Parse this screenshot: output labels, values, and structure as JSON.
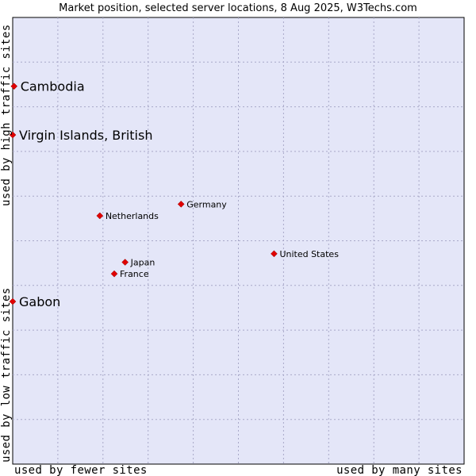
{
  "chart_data": {
    "type": "scatter",
    "title": "Market position, selected server locations, 8 Aug 2025, W3Techs.com",
    "xlabel_left": "used by fewer sites",
    "xlabel_right": "used by many sites",
    "ylabel_bottom": "used by low traffic sites",
    "ylabel_top": "used by high traffic sites",
    "xlim": [
      0,
      100
    ],
    "ylim": [
      0,
      100
    ],
    "grid": true,
    "colors": {
      "plot_bg": "#e4e6f8",
      "grid": "#a8a8c8",
      "marker": "#e00000",
      "frame": "#000000"
    },
    "points": [
      {
        "label": "Cambodia",
        "x": 0.3,
        "y": 84.6,
        "size": "large"
      },
      {
        "label": "Virgin Islands, British",
        "x": 0.0,
        "y": 73.7,
        "size": "large"
      },
      {
        "label": "Germany",
        "x": 37.3,
        "y": 58.2,
        "size": "small"
      },
      {
        "label": "Netherlands",
        "x": 19.3,
        "y": 55.6,
        "size": "small"
      },
      {
        "label": "United States",
        "x": 57.9,
        "y": 47.1,
        "size": "small"
      },
      {
        "label": "Japan",
        "x": 24.9,
        "y": 45.2,
        "size": "small"
      },
      {
        "label": "France",
        "x": 22.5,
        "y": 42.6,
        "size": "small"
      },
      {
        "label": "Gabon",
        "x": 0.0,
        "y": 36.4,
        "size": "large"
      }
    ]
  }
}
